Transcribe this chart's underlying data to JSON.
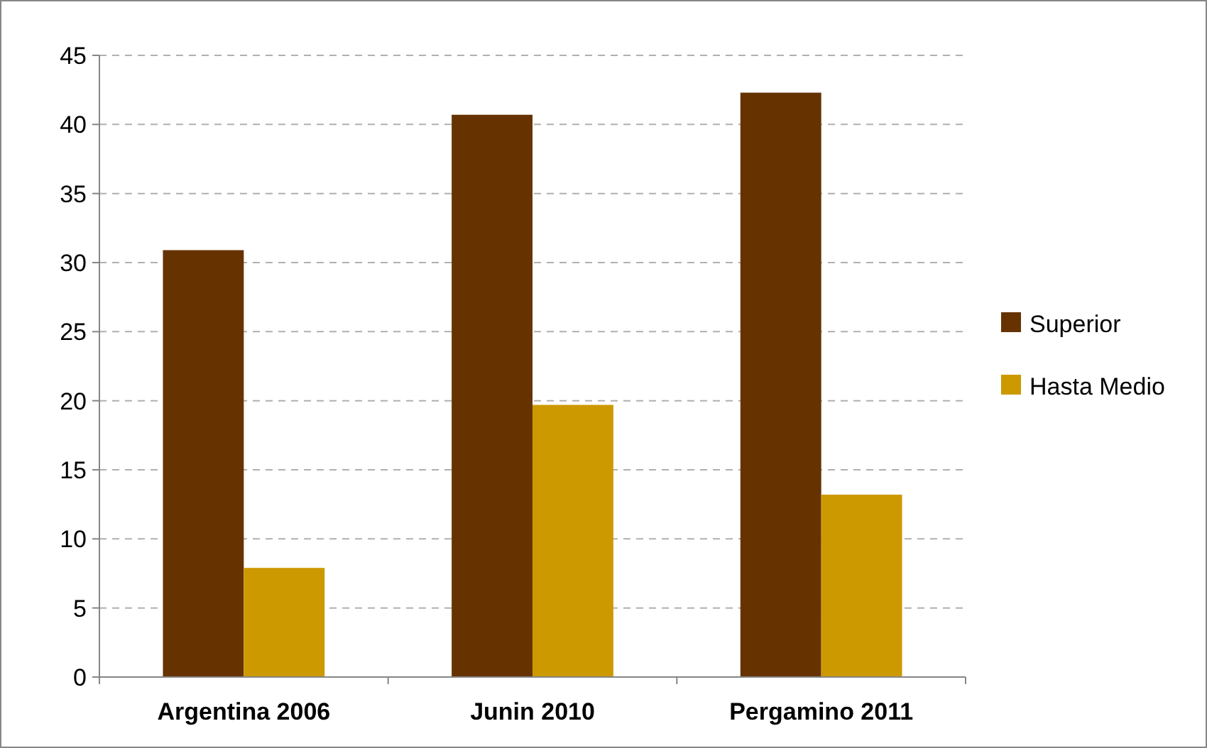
{
  "chart_data": {
    "type": "bar",
    "categories": [
      "Argentina 2006",
      "Junin 2010",
      "Pergamino 2011"
    ],
    "series": [
      {
        "name": "Superior",
        "color": "#663300",
        "values": [
          30.9,
          40.7,
          42.3
        ]
      },
      {
        "name": "Hasta Medio",
        "color": "#cc9900",
        "values": [
          7.9,
          19.7,
          13.2
        ]
      }
    ],
    "ylim": [
      0,
      45
    ],
    "yticks": [
      0,
      5,
      10,
      15,
      20,
      25,
      30,
      35,
      40,
      45
    ],
    "grid": "y",
    "legend": "right"
  }
}
